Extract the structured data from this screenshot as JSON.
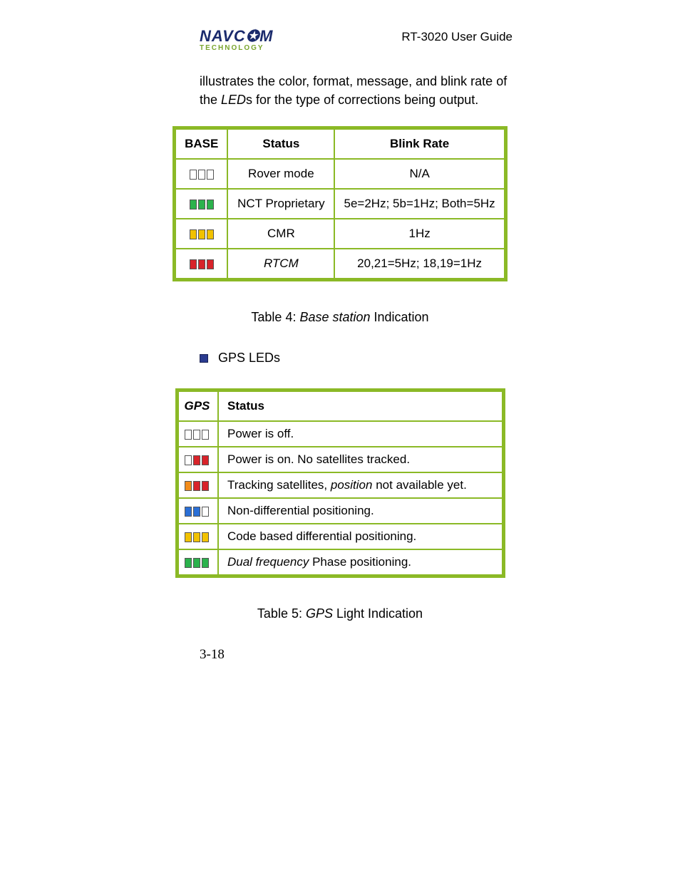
{
  "header": {
    "logo_main": "NAVC✪M",
    "logo_sub": "TECHNOLOGY",
    "doc_title": "RT-3020 User Guide"
  },
  "intro": {
    "line1": "illustrates the color, format, message, and blink rate of",
    "line2_pre": "the ",
    "line2_em": "LED",
    "line2_post": "s for the type of corrections being output."
  },
  "table1": {
    "h1": "BASE",
    "h2": "Status",
    "h3": "Blink Rate",
    "rows": [
      {
        "leds": [
          "white",
          "white",
          "white"
        ],
        "status": "Rover mode",
        "rate": "N/A"
      },
      {
        "leds": [
          "green",
          "green",
          "green"
        ],
        "status": "NCT Proprietary",
        "rate": "5e=2Hz; 5b=1Hz; Both=5Hz"
      },
      {
        "leds": [
          "yellow",
          "yellow",
          "yellow"
        ],
        "status": "CMR",
        "rate": "1Hz"
      },
      {
        "leds": [
          "red",
          "red",
          "red"
        ],
        "status_em": "RTCM",
        "rate": "20,21=5Hz; 18,19=1Hz"
      }
    ]
  },
  "caption1_pre": "Table 4: ",
  "caption1_em": "Base station",
  "caption1_post": " Indication",
  "bullet1": "GPS LEDs",
  "table2": {
    "h1": "GPS",
    "h2": "Status",
    "rows": [
      {
        "leds": [
          "white",
          "white",
          "white"
        ],
        "status": "Power is off."
      },
      {
        "leds": [
          "white",
          "red",
          "red"
        ],
        "status": "Power is on. No satellites tracked."
      },
      {
        "leds": [
          "orange",
          "red",
          "red"
        ],
        "status_pre": "Tracking satellites, ",
        "status_em": "position",
        "status_post": " not available yet."
      },
      {
        "leds": [
          "blue",
          "blue",
          "white"
        ],
        "status": "Non-differential positioning."
      },
      {
        "leds": [
          "yellow",
          "yellow",
          "yellow"
        ],
        "status": "Code based differential positioning."
      },
      {
        "leds": [
          "green",
          "green",
          "green"
        ],
        "status_em": "Dual frequency",
        "status_post": " Phase positioning."
      }
    ]
  },
  "caption2_pre": "Table 5: ",
  "caption2_em": "GPS",
  "caption2_post": " Light Indication",
  "page_number": "3-18",
  "colors": {
    "table_border": "#8bb926",
    "bullet": "#2a3b8f",
    "logo_main": "#1a2a6c",
    "logo_sub": "#7aa52f"
  }
}
